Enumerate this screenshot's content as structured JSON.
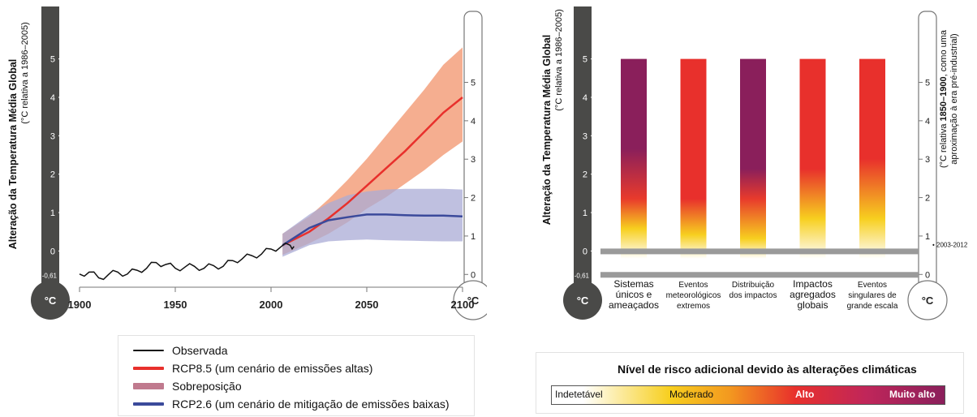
{
  "chart_data": [
    {
      "type": "line",
      "ylabel_main": "Alteração da Temperatura Média Global",
      "ylabel_sub": "(°C relativa a 1986–2005)",
      "ylabel_right_a": "(°C relativa ",
      "ylabel_right_b": "1850–1900",
      "ylabel_right_c": ", como uma",
      "ylabel_right_line2": "aproximação à era pré-industrial)",
      "unit_label": "°C",
      "left_ticks": [
        "0",
        "1",
        "2",
        "3",
        "4",
        "5"
      ],
      "left_min_label": "-0,61",
      "right_ticks": [
        "0",
        "1",
        "2",
        "3",
        "4",
        "5"
      ],
      "x_ticks": [
        "1900",
        "1950",
        "2000",
        "2050",
        "2100"
      ],
      "xlim": [
        1900,
        2100
      ],
      "ylim": [
        -0.9,
        5.9
      ],
      "series": [
        {
          "name": "Observada",
          "x": [
            1900,
            1905,
            1910,
            1915,
            1920,
            1925,
            1930,
            1935,
            1940,
            1945,
            1950,
            1955,
            1960,
            1965,
            1970,
            1975,
            1980,
            1985,
            1990,
            1995,
            2000,
            2005,
            2010,
            2012
          ],
          "y": [
            -0.6,
            -0.55,
            -0.7,
            -0.62,
            -0.55,
            -0.6,
            -0.5,
            -0.45,
            -0.3,
            -0.35,
            -0.45,
            -0.42,
            -0.4,
            -0.45,
            -0.38,
            -0.4,
            -0.25,
            -0.2,
            -0.12,
            -0.08,
            0.05,
            0.1,
            0.15,
            0.12
          ]
        },
        {
          "name": "RCP8.5 (um cenário de emissões altas)",
          "x": [
            2006,
            2020,
            2030,
            2040,
            2050,
            2060,
            2070,
            2080,
            2090,
            2100
          ],
          "y": [
            0.15,
            0.5,
            0.85,
            1.25,
            1.7,
            2.15,
            2.6,
            3.1,
            3.6,
            4.0
          ],
          "low": [
            -0.1,
            0.2,
            0.45,
            0.75,
            1.1,
            1.4,
            1.75,
            2.1,
            2.5,
            2.85
          ],
          "high": [
            0.45,
            0.9,
            1.35,
            1.85,
            2.4,
            3.0,
            3.6,
            4.2,
            4.85,
            5.3
          ]
        },
        {
          "name": "RCP2.6 (um cenário de mitigação de emissões baixas)",
          "x": [
            2006,
            2020,
            2030,
            2040,
            2050,
            2060,
            2070,
            2080,
            2090,
            2100
          ],
          "y": [
            0.15,
            0.6,
            0.8,
            0.88,
            0.95,
            0.95,
            0.93,
            0.92,
            0.92,
            0.9
          ],
          "low": [
            -0.15,
            0.15,
            0.25,
            0.28,
            0.3,
            0.28,
            0.27,
            0.26,
            0.25,
            0.25
          ],
          "high": [
            0.45,
            0.95,
            1.25,
            1.45,
            1.55,
            1.6,
            1.62,
            1.62,
            1.62,
            1.6
          ]
        }
      ],
      "colors": {
        "observed": "#111111",
        "rcp85": "#e8302c",
        "rcp85_band": "#f4a584",
        "rcp26": "#3b4a9b",
        "rcp26_band": "#a9abd6",
        "overlap": "#c07a8e"
      },
      "legend": [
        {
          "label": "Observada",
          "color": "#111111"
        },
        {
          "label": "RCP8.5 (um cenário de emissões altas)",
          "color": "#e8302c"
        },
        {
          "label": "Sobreposição",
          "color": "#c07a8e"
        },
        {
          "label": "RCP2.6 (um cenário de mitigação de emissões baixas)",
          "color": "#3b4a9b"
        }
      ]
    },
    {
      "type": "bar",
      "ylabel_main": "Alteração da Temperatura Média Global",
      "ylabel_sub": "(°C relativa a 1986–2005)",
      "ylabel_right_a": "(°C relativa ",
      "ylabel_right_b": "1850–1900",
      "ylabel_right_c": ", como uma",
      "ylabel_right_line2": "aproximação à era pré-industrial)",
      "unit_label": "°C",
      "left_ticks": [
        "0",
        "1",
        "2",
        "3",
        "4",
        "5"
      ],
      "left_min_label": "-0,61",
      "right_ticks": [
        "0",
        "1",
        "2",
        "3",
        "4",
        "5"
      ],
      "annotation": "2003-2012",
      "categories": [
        [
          "Sistemas",
          "únicos e",
          "ameaçados"
        ],
        [
          "Eventos",
          "meteorológicos",
          "extremos"
        ],
        [
          "Distribuição",
          "dos impactos"
        ],
        [
          "Impactos",
          "agregados",
          "globais"
        ],
        [
          "Eventos",
          "singulares de",
          "grande escala"
        ]
      ],
      "values": [
        5,
        5,
        5,
        5,
        5
      ],
      "risk_stops": [
        [
          [
            0,
            "#ffffff"
          ],
          [
            0.15,
            "#f7cf1f"
          ],
          [
            0.3,
            "#e83a2c"
          ],
          [
            0.55,
            "#8a1f5b"
          ],
          [
            1,
            "#8a1f5b"
          ]
        ],
        [
          [
            0,
            "#ffffff"
          ],
          [
            0.12,
            "#f7cf1f"
          ],
          [
            0.3,
            "#e8302c"
          ],
          [
            1,
            "#e8302c"
          ]
        ],
        [
          [
            0,
            "#ffffff"
          ],
          [
            0.1,
            "#f7cf1f"
          ],
          [
            0.3,
            "#e83a2c"
          ],
          [
            0.45,
            "#8a1f5b"
          ],
          [
            1,
            "#8a1f5b"
          ]
        ],
        [
          [
            0,
            "#ffffff"
          ],
          [
            0.2,
            "#f7cf1f"
          ],
          [
            0.45,
            "#e8302c"
          ],
          [
            1,
            "#e8302c"
          ]
        ],
        [
          [
            0,
            "#ffffff"
          ],
          [
            0.2,
            "#f7cf1f"
          ],
          [
            0.5,
            "#e8302c"
          ],
          [
            1,
            "#e8302c"
          ]
        ]
      ],
      "ylim": [
        -0.9,
        5.9
      ]
    }
  ],
  "risk_scale": {
    "title": "Nível de risco adicional devido às alterações climáticas",
    "labels": [
      "Indetetável",
      "Moderado",
      "Alto",
      "Muito alto"
    ],
    "colors": [
      "#ffffff",
      "#f7cf1f",
      "#e8302c",
      "#8a1f5b"
    ]
  }
}
